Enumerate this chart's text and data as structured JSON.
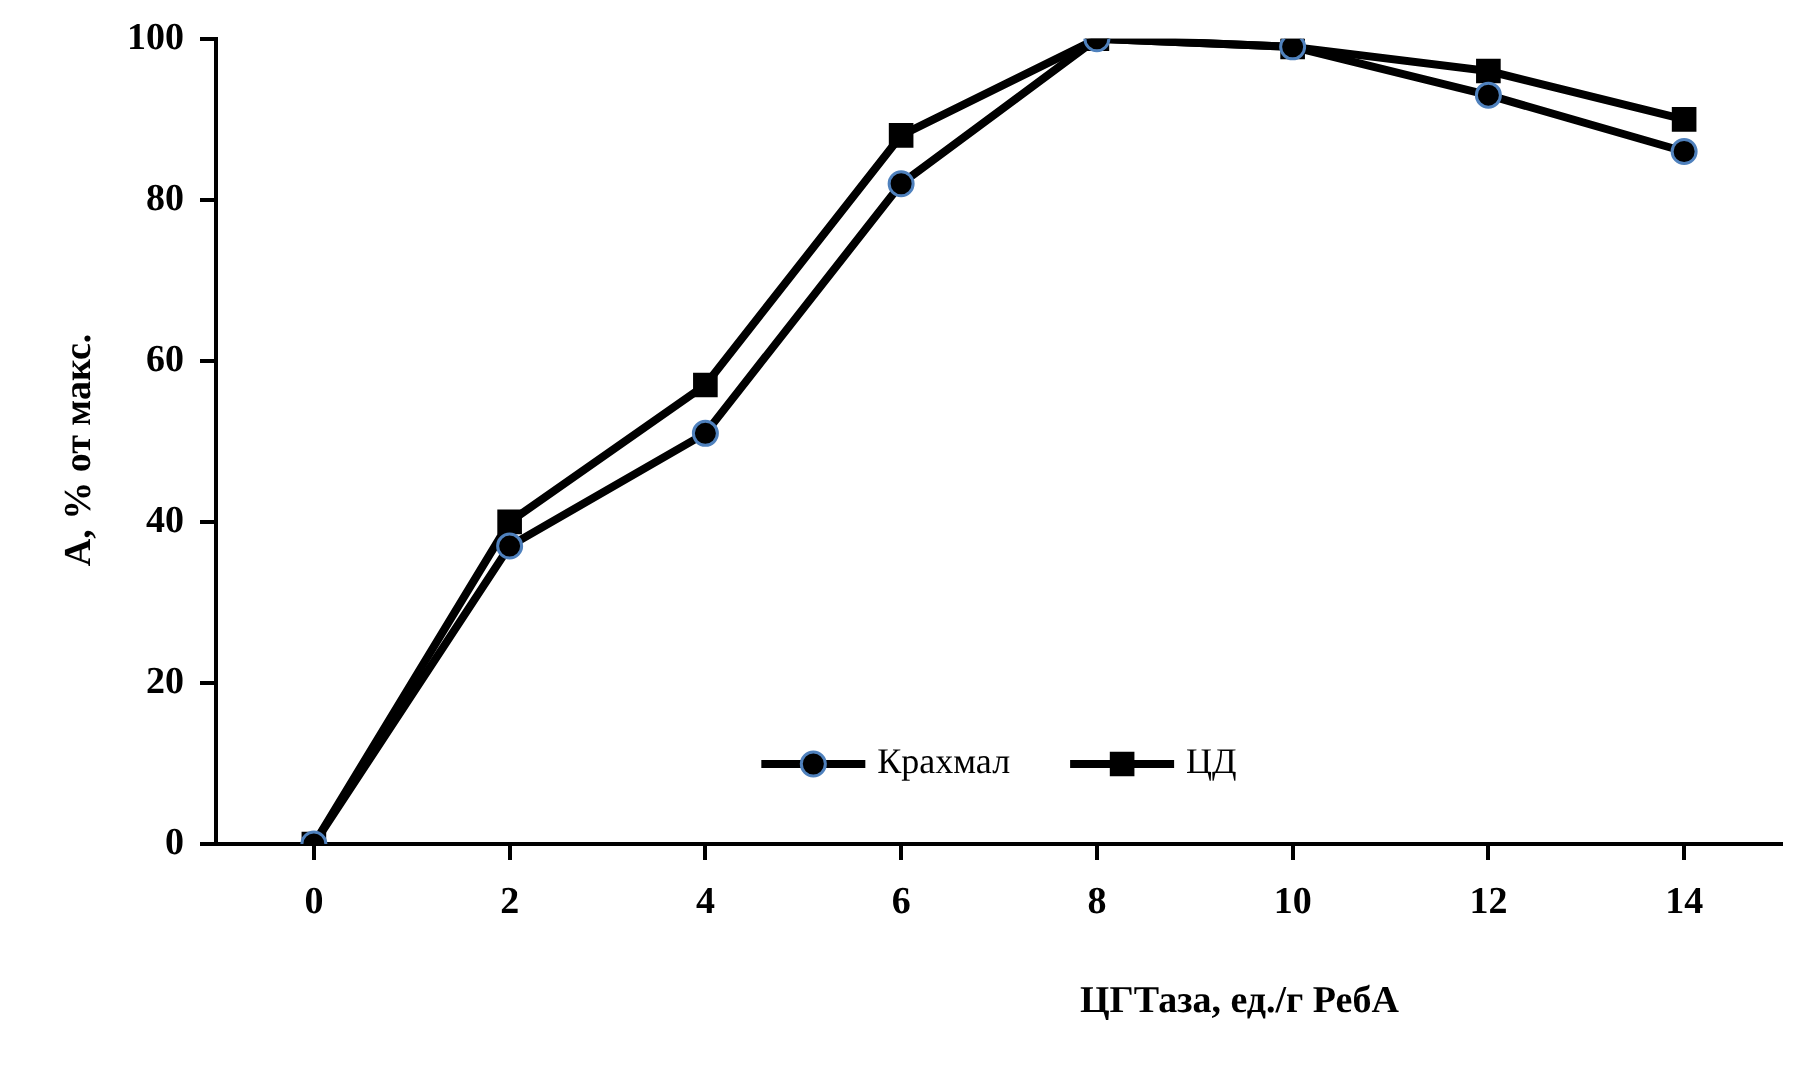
{
  "chart_data": {
    "type": "line",
    "xlabel": "ЦГТаза, ед./г РебА",
    "ylabel": "А, % от макс.",
    "categories": [
      "0",
      "2",
      "4",
      "6",
      "8",
      "10",
      "12",
      "14"
    ],
    "series": [
      {
        "name": "Крахмал",
        "color": "#000000",
        "marker": "circle",
        "values": [
          0,
          37,
          51,
          82,
          100,
          99,
          93,
          86
        ]
      },
      {
        "name": "ЦД",
        "color": "#000000",
        "marker": "square",
        "values": [
          0,
          40,
          57,
          88,
          100,
          99,
          96,
          90
        ]
      }
    ],
    "ylim": [
      0,
      100
    ],
    "yticks": [
      0,
      20,
      40,
      60,
      80,
      100
    ],
    "grid": false,
    "legend": "bottom",
    "line_style": "solid"
  }
}
